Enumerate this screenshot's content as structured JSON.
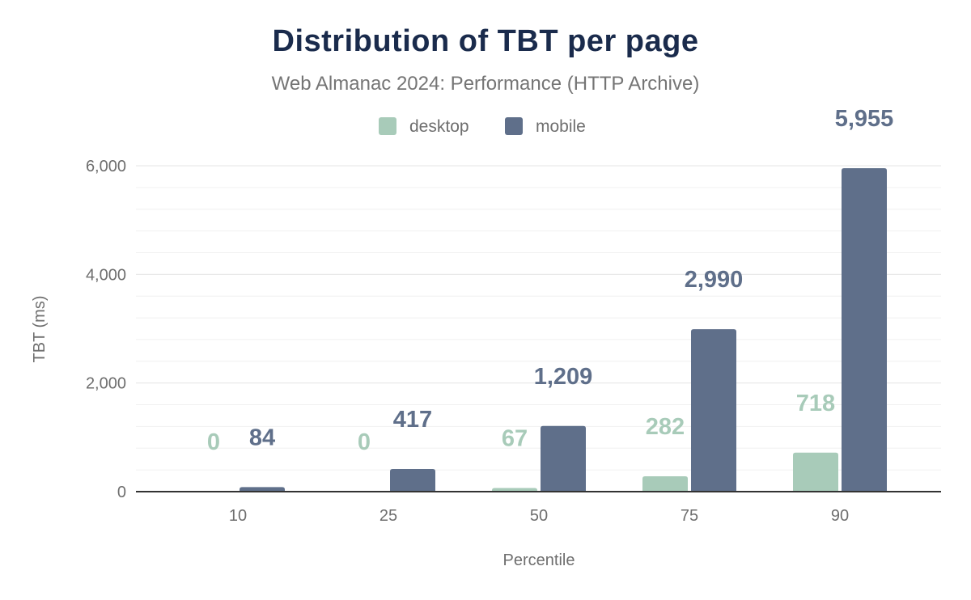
{
  "chart_data": {
    "type": "bar",
    "title": "Distribution of TBT per page",
    "subtitle": "Web Almanac 2024: Performance (HTTP Archive)",
    "xlabel": "Percentile",
    "ylabel": "TBT (ms)",
    "categories": [
      "10",
      "25",
      "50",
      "75",
      "90"
    ],
    "series": [
      {
        "name": "desktop",
        "color": "#a8cbb9",
        "values": [
          0,
          0,
          67,
          282,
          718
        ],
        "labels": [
          "0",
          "0",
          "67",
          "282",
          "718"
        ]
      },
      {
        "name": "mobile",
        "color": "#5f6f8a",
        "values": [
          84,
          417,
          1209,
          2990,
          5955
        ],
        "labels": [
          "84",
          "417",
          "1,209",
          "2,990",
          "5,955"
        ]
      }
    ],
    "ylim": [
      0,
      6000
    ],
    "yticks": [
      0,
      2000,
      4000,
      6000
    ],
    "ytick_labels": [
      "0",
      "2,000",
      "4,000",
      "6,000"
    ],
    "grid": true,
    "legend": "top-center"
  }
}
